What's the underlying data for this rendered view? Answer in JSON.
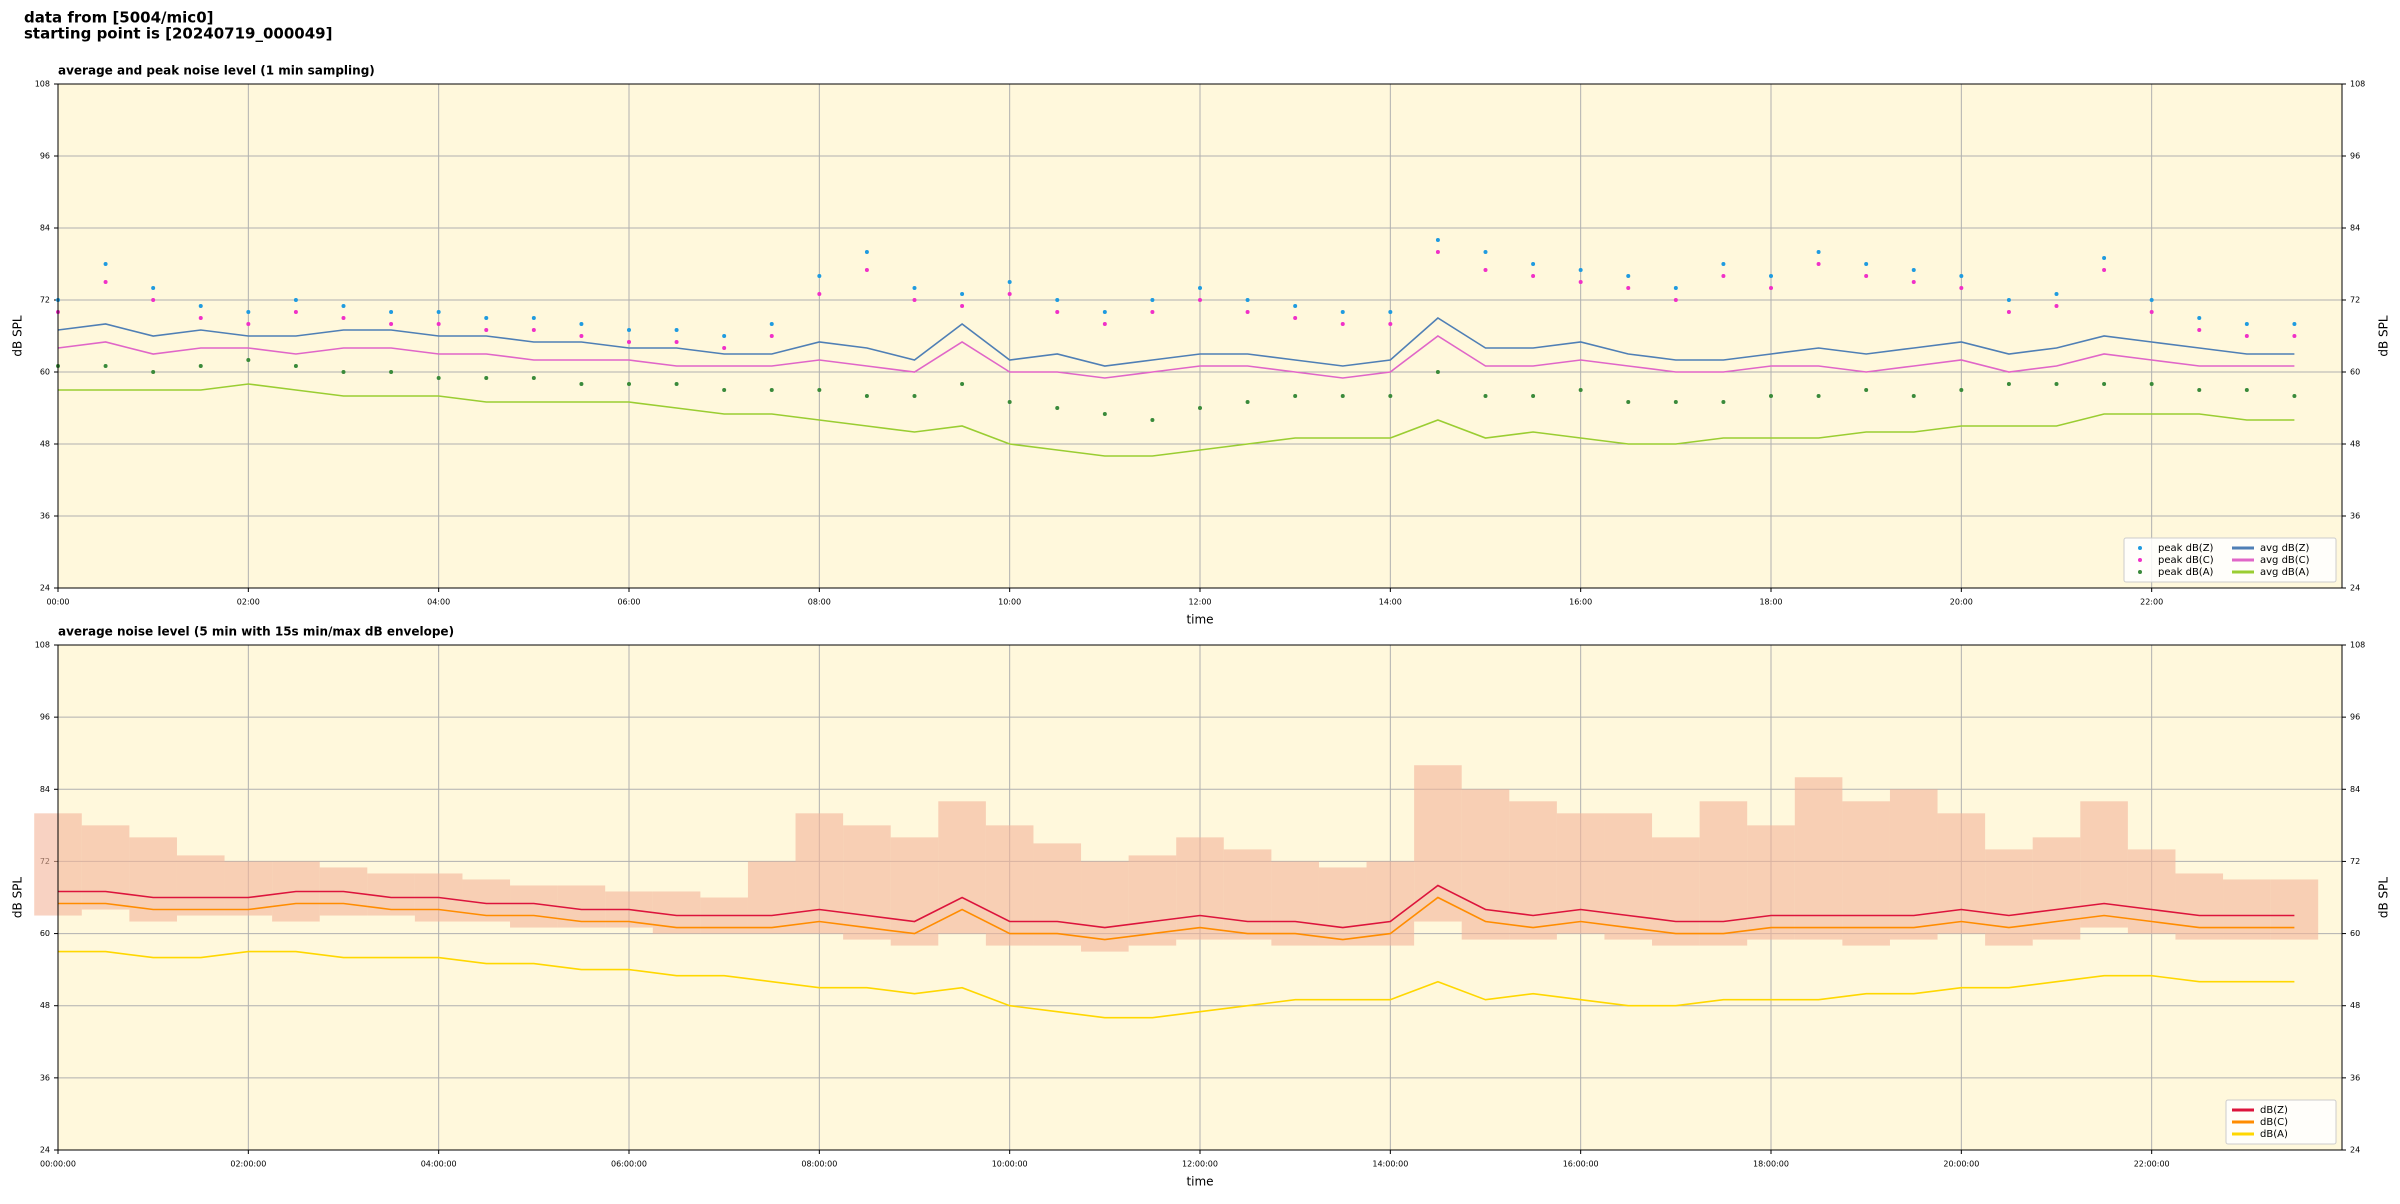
{
  "header": {
    "lines": [
      "data from [5004/mic0]",
      "starting point is [20240719_000049]"
    ]
  },
  "chart_data": [
    {
      "type": "line",
      "title": "average and peak noise level (1 min sampling)",
      "xlabel": "time",
      "ylabel": "dB SPL",
      "x": [
        "00:00",
        "00:30",
        "01:00",
        "01:30",
        "02:00",
        "02:30",
        "03:00",
        "03:30",
        "04:00",
        "04:30",
        "05:00",
        "05:30",
        "06:00",
        "06:30",
        "07:00",
        "07:30",
        "08:00",
        "08:30",
        "09:00",
        "09:30",
        "10:00",
        "10:30",
        "11:00",
        "11:30",
        "12:00",
        "12:30",
        "13:00",
        "13:30",
        "14:00",
        "14:30",
        "15:00",
        "15:30",
        "16:00",
        "16:30",
        "17:00",
        "17:30",
        "18:00",
        "18:30",
        "19:00",
        "19:30",
        "20:00",
        "20:30",
        "21:00",
        "21:30",
        "22:00",
        "22:30",
        "23:00",
        "23:30"
      ],
      "xlim": [
        "00:00",
        "24:00"
      ],
      "xticks": [
        "00:00",
        "02:00",
        "04:00",
        "06:00",
        "08:00",
        "10:00",
        "12:00",
        "14:00",
        "16:00",
        "18:00",
        "20:00",
        "22:00"
      ],
      "ylim": [
        24,
        108
      ],
      "yticks": [
        24,
        36,
        48,
        60,
        72,
        84,
        96,
        108
      ],
      "grid": true,
      "legend": "lower right",
      "background": "#fff8dc",
      "series": [
        {
          "name": "peak dB(Z)",
          "kind": "scatter",
          "color": "#1f9be0",
          "values": [
            72,
            78,
            74,
            71,
            70,
            72,
            71,
            70,
            70,
            69,
            69,
            68,
            67,
            67,
            66,
            68,
            76,
            80,
            74,
            73,
            75,
            72,
            70,
            72,
            74,
            72,
            71,
            70,
            70,
            82,
            80,
            78,
            77,
            76,
            74,
            78,
            76,
            80,
            78,
            77,
            76,
            72,
            73,
            79,
            72,
            69,
            68,
            68
          ]
        },
        {
          "name": "peak dB(C)",
          "kind": "scatter",
          "color": "#f030c8",
          "values": [
            70,
            75,
            72,
            69,
            68,
            70,
            69,
            68,
            68,
            67,
            67,
            66,
            65,
            65,
            64,
            66,
            73,
            77,
            72,
            71,
            73,
            70,
            68,
            70,
            72,
            70,
            69,
            68,
            68,
            80,
            77,
            76,
            75,
            74,
            72,
            76,
            74,
            78,
            76,
            75,
            74,
            70,
            71,
            77,
            70,
            67,
            66,
            66
          ]
        },
        {
          "name": "peak dB(A)",
          "kind": "scatter",
          "color": "#3a8a3a",
          "values": [
            61,
            61,
            60,
            61,
            62,
            61,
            60,
            60,
            59,
            59,
            59,
            58,
            58,
            58,
            57,
            57,
            57,
            56,
            56,
            58,
            55,
            54,
            53,
            52,
            54,
            55,
            56,
            56,
            56,
            60,
            56,
            56,
            57,
            55,
            55,
            55,
            56,
            56,
            57,
            56,
            57,
            58,
            58,
            58,
            58,
            57,
            57,
            56
          ]
        },
        {
          "name": "avg dB(Z)",
          "kind": "line",
          "color": "#4f7fb5",
          "values": [
            67,
            68,
            66,
            67,
            66,
            66,
            67,
            67,
            66,
            66,
            65,
            65,
            64,
            64,
            63,
            63,
            65,
            64,
            62,
            68,
            62,
            63,
            61,
            62,
            63,
            63,
            62,
            61,
            62,
            69,
            64,
            64,
            65,
            63,
            62,
            62,
            63,
            64,
            63,
            64,
            65,
            63,
            64,
            66,
            65,
            64,
            63,
            63
          ]
        },
        {
          "name": "avg dB(C)",
          "kind": "line",
          "color": "#e066c8",
          "values": [
            64,
            65,
            63,
            64,
            64,
            63,
            64,
            64,
            63,
            63,
            62,
            62,
            62,
            61,
            61,
            61,
            62,
            61,
            60,
            65,
            60,
            60,
            59,
            60,
            61,
            61,
            60,
            59,
            60,
            66,
            61,
            61,
            62,
            61,
            60,
            60,
            61,
            61,
            60,
            61,
            62,
            60,
            61,
            63,
            62,
            61,
            61,
            61
          ]
        },
        {
          "name": "avg dB(A)",
          "kind": "line",
          "color": "#9acd32",
          "values": [
            57,
            57,
            57,
            57,
            58,
            57,
            56,
            56,
            56,
            55,
            55,
            55,
            55,
            54,
            53,
            53,
            52,
            51,
            50,
            51,
            48,
            47,
            46,
            46,
            47,
            48,
            49,
            49,
            49,
            52,
            49,
            50,
            49,
            48,
            48,
            49,
            49,
            49,
            50,
            50,
            51,
            51,
            51,
            53,
            53,
            53,
            52,
            52
          ]
        }
      ]
    },
    {
      "type": "line",
      "title": "average noise level (5 min with 15s min/max dB envelope)",
      "xlabel": "time",
      "ylabel": "dB SPL",
      "x": [
        "00:00:00",
        "00:30:00",
        "01:00:00",
        "01:30:00",
        "02:00:00",
        "02:30:00",
        "03:00:00",
        "03:30:00",
        "04:00:00",
        "04:30:00",
        "05:00:00",
        "05:30:00",
        "06:00:00",
        "06:30:00",
        "07:00:00",
        "07:30:00",
        "08:00:00",
        "08:30:00",
        "09:00:00",
        "09:30:00",
        "10:00:00",
        "10:30:00",
        "11:00:00",
        "11:30:00",
        "12:00:00",
        "12:30:00",
        "13:00:00",
        "13:30:00",
        "14:00:00",
        "14:30:00",
        "15:00:00",
        "15:30:00",
        "16:00:00",
        "16:30:00",
        "17:00:00",
        "17:30:00",
        "18:00:00",
        "18:30:00",
        "19:00:00",
        "19:30:00",
        "20:00:00",
        "20:30:00",
        "21:00:00",
        "21:30:00",
        "22:00:00",
        "22:30:00",
        "23:00:00",
        "23:30:00"
      ],
      "xlim": [
        "00:00:00",
        "24:00:00"
      ],
      "xticks": [
        "00:00:00",
        "02:00:00",
        "04:00:00",
        "06:00:00",
        "08:00:00",
        "10:00:00",
        "12:00:00",
        "14:00:00",
        "16:00:00",
        "18:00:00",
        "20:00:00",
        "22:00:00"
      ],
      "ylim": [
        24,
        108
      ],
      "yticks": [
        24,
        36,
        48,
        60,
        72,
        84,
        96,
        108
      ],
      "grid": true,
      "legend": "lower right",
      "background": "#fff8dc",
      "envelope": {
        "color": "#f4b49a",
        "min": [
          63,
          64,
          62,
          63,
          63,
          62,
          63,
          63,
          62,
          62,
          61,
          61,
          61,
          60,
          60,
          60,
          60,
          59,
          58,
          60,
          58,
          58,
          57,
          58,
          59,
          59,
          58,
          58,
          58,
          62,
          59,
          59,
          60,
          59,
          58,
          58,
          59,
          59,
          58,
          59,
          60,
          58,
          59,
          61,
          60,
          59,
          59,
          59
        ],
        "max": [
          80,
          78,
          76,
          73,
          72,
          72,
          71,
          70,
          70,
          69,
          68,
          68,
          67,
          67,
          66,
          72,
          80,
          78,
          76,
          82,
          78,
          75,
          72,
          73,
          76,
          74,
          72,
          71,
          72,
          88,
          84,
          82,
          80,
          80,
          76,
          82,
          78,
          86,
          82,
          84,
          80,
          74,
          76,
          82,
          74,
          70,
          69,
          69
        ]
      },
      "series": [
        {
          "name": "dB(Z)",
          "kind": "line",
          "color": "#dc143c",
          "values": [
            67,
            67,
            66,
            66,
            66,
            67,
            67,
            66,
            66,
            65,
            65,
            64,
            64,
            63,
            63,
            63,
            64,
            63,
            62,
            66,
            62,
            62,
            61,
            62,
            63,
            62,
            62,
            61,
            62,
            68,
            64,
            63,
            64,
            63,
            62,
            62,
            63,
            63,
            63,
            63,
            64,
            63,
            64,
            65,
            64,
            63,
            63,
            63
          ]
        },
        {
          "name": "dB(C)",
          "kind": "line",
          "color": "#ff8c00",
          "values": [
            65,
            65,
            64,
            64,
            64,
            65,
            65,
            64,
            64,
            63,
            63,
            62,
            62,
            61,
            61,
            61,
            62,
            61,
            60,
            64,
            60,
            60,
            59,
            60,
            61,
            60,
            60,
            59,
            60,
            66,
            62,
            61,
            62,
            61,
            60,
            60,
            61,
            61,
            61,
            61,
            62,
            61,
            62,
            63,
            62,
            61,
            61,
            61
          ]
        },
        {
          "name": "dB(A)",
          "kind": "line",
          "color": "#ffd700",
          "values": [
            57,
            57,
            56,
            56,
            57,
            57,
            56,
            56,
            56,
            55,
            55,
            54,
            54,
            53,
            53,
            52,
            51,
            51,
            50,
            51,
            48,
            47,
            46,
            46,
            47,
            48,
            49,
            49,
            49,
            52,
            49,
            50,
            49,
            48,
            48,
            49,
            49,
            49,
            50,
            50,
            51,
            51,
            52,
            53,
            53,
            52,
            52,
            52
          ]
        }
      ]
    }
  ]
}
